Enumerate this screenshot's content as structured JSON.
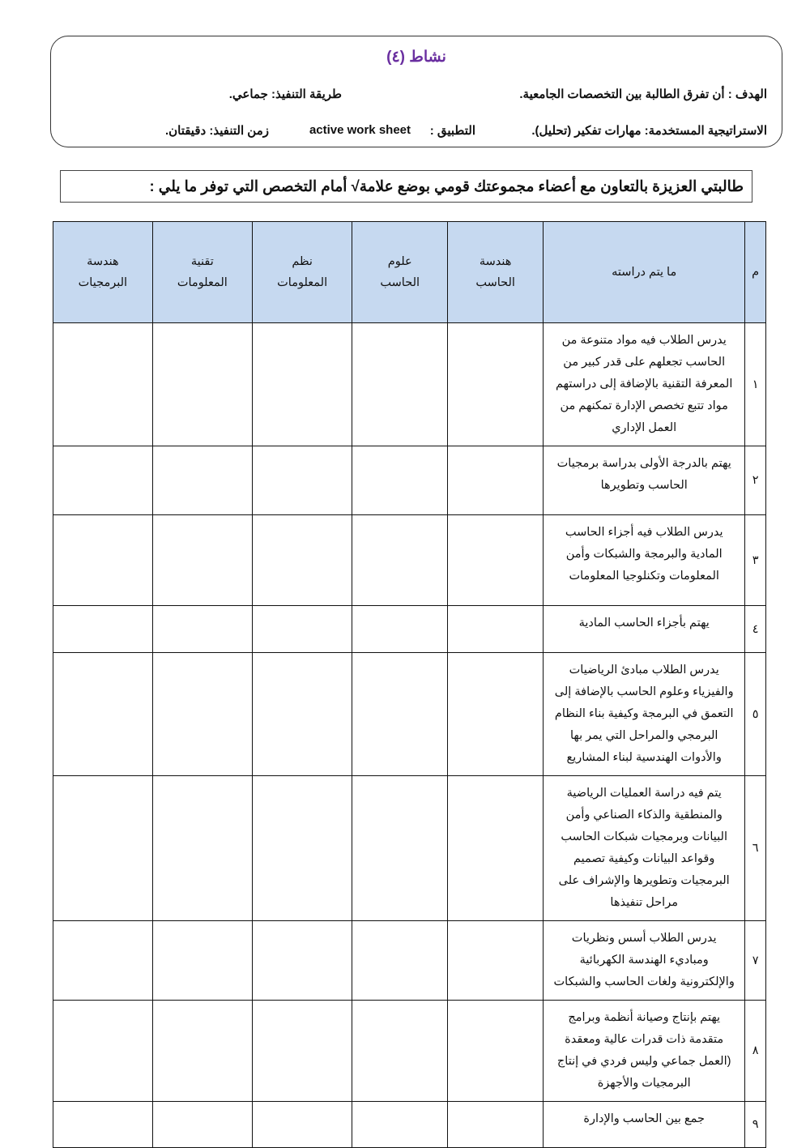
{
  "header": {
    "title": "نشاط (٤)",
    "goal": "الهدف : أن تفرق الطالبة بين التخصصات الجامعية.",
    "method": "طريقة التنفيذ: جماعي.",
    "strategy": "الاستراتيجية المستخدمة: مهارات تفكير (تحليل).",
    "app_label": "التطبيق :",
    "app_value": "active work sheet",
    "duration": "زمن التنفيذ: دقيقتان."
  },
  "instruction": "طالبتي العزيزة بالتعاون مع أعضاء مجموعتك قومي بوضع علامة√ أمام التخصص التي توفر ما يلي :",
  "table": {
    "headers": [
      "م",
      "ما يتم دراسته",
      "هندسة الحاسب",
      "علوم الحاسب",
      "نظم المعلومات",
      "تقنية المعلومات",
      "هندسة البرمجيات"
    ],
    "rows": [
      {
        "n": "١",
        "text": "يدرس الطلاب فيه مواد متنوعة من الحاسب تجعلهم على قدر كبير من المعرفة التقنية بالإضافة إلى دراستهم مواد تتبع تخصص الإدارة تمكنهم من العمل الإداري"
      },
      {
        "n": "٢",
        "text": "يهتم بالدرجة الأولى بدراسة برمجيات الحاسب وتطويرها"
      },
      {
        "n": "٣",
        "text": "يدرس الطلاب فيه أجزاء الحاسب المادية والبرمجة والشبكات وأمن المعلومات وتكنلوجيا المعلومات"
      },
      {
        "n": "٤",
        "text": "يهتم بأجزاء الحاسب المادية"
      },
      {
        "n": "٥",
        "text": "يدرس الطلاب مبادئ الرياضيات والفيزياء وعلوم الحاسب بالإضافة إلى التعمق في البرمجة وكيفية بناء النظام البرمجي والمراحل التي يمر بها والأدوات الهندسية لبناء المشاريع"
      },
      {
        "n": "٦",
        "text": "يتم فيه دراسة العمليات الرياضية والمنطقية والذكاء الصناعي وأمن البيانات وبرمجيات شبكات الحاسب وقواعد البيانات وكيفية تصميم البرمجيات وتطويرها والإشراف على مراحل تنفيذها"
      },
      {
        "n": "٧",
        "text": "يدرس الطلاب أسس ونظريات ومباديء الهندسة الكهربائية والإلكترونية ولغات الحاسب والشبكات"
      },
      {
        "n": "٨",
        "text": "يهتم بإنتاج وصيانة أنظمة وبرامج متقدمة ذات قدرات عالية ومعقدة (العمل جماعي وليس فردي في إنتاج البرمجيات والأجهزة"
      },
      {
        "n": "٩",
        "text": "جمع بين الحاسب والإدارة"
      }
    ]
  }
}
